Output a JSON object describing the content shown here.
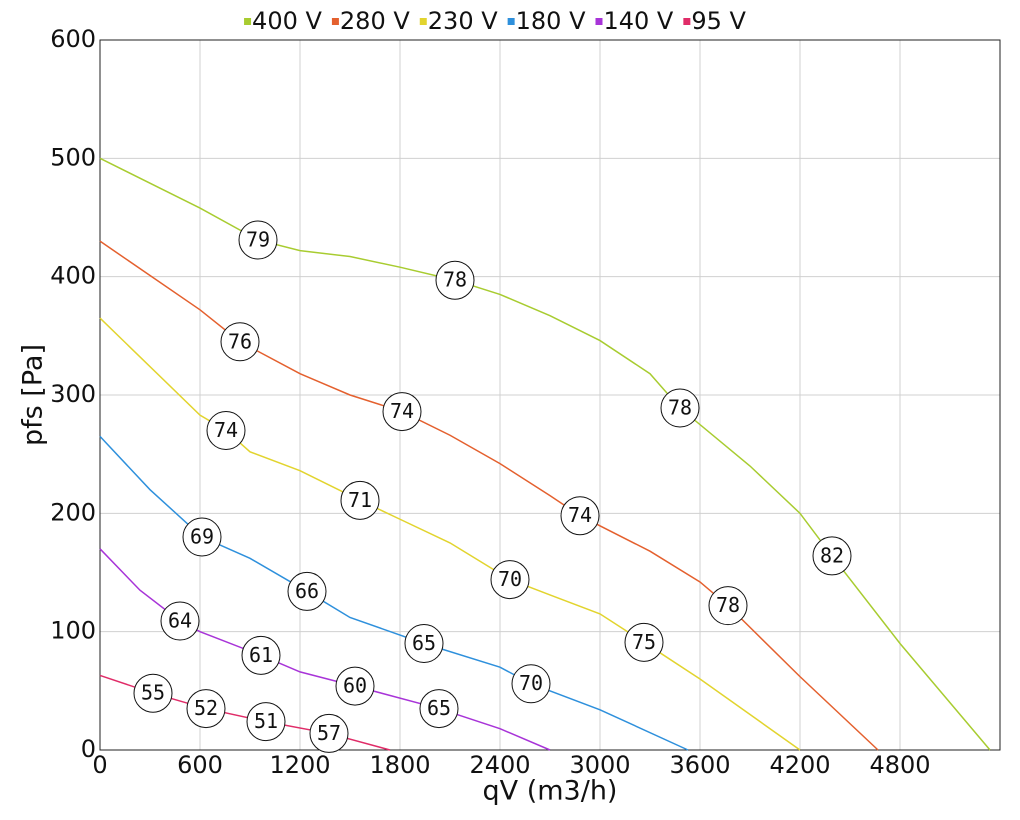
{
  "chart_data": {
    "type": "line",
    "x_label": "qV (m3/h)",
    "y_label": "pfs [Pa]",
    "xlim": [
      0,
      5400
    ],
    "ylim": [
      0,
      600
    ],
    "xticks": [
      0,
      600,
      1200,
      1800,
      2400,
      3000,
      3600,
      4200,
      4800
    ],
    "yticks": [
      0,
      100,
      200,
      300,
      400,
      500,
      600
    ],
    "grid": true,
    "legend": "top",
    "series": [
      {
        "name": "400 V",
        "color": "#a8cc30",
        "x": [
          0,
          600,
          948,
          1200,
          1500,
          1800,
          2130,
          2400,
          2700,
          3000,
          3300,
          3480,
          3900,
          4200,
          4392,
          4800,
          5340
        ],
        "values": [
          500,
          458,
          431,
          422,
          417,
          408,
          397,
          385,
          367,
          346,
          318,
          289,
          240,
          200,
          164,
          90,
          0
        ],
        "markers": {
          "x": [
            948,
            2130,
            3480,
            4392
          ],
          "y": [
            431,
            397,
            289,
            164
          ],
          "labels": [
            79,
            78,
            78,
            82
          ]
        }
      },
      {
        "name": "280 V",
        "color": "#e4602e",
        "x": [
          0,
          600,
          840,
          1200,
          1500,
          1812,
          2100,
          2400,
          2700,
          2880,
          3300,
          3600,
          3768,
          4200,
          4668
        ],
        "values": [
          430,
          372,
          345,
          318,
          300,
          286,
          266,
          242,
          215,
          198,
          168,
          142,
          122,
          62,
          0
        ],
        "markers": {
          "x": [
            840,
            1812,
            2880,
            3768
          ],
          "y": [
            345,
            286,
            198,
            122
          ],
          "labels": [
            76,
            74,
            74,
            78
          ]
        }
      },
      {
        "name": "230 V",
        "color": "#e2d42e",
        "x": [
          0,
          600,
          756,
          900,
          1200,
          1560,
          1800,
          2100,
          2460,
          2700,
          3000,
          3264,
          3600,
          4200
        ],
        "values": [
          365,
          283,
          270,
          252,
          236,
          211,
          195,
          175,
          144,
          131,
          115,
          91,
          60,
          0
        ],
        "markers": {
          "x": [
            756,
            1560,
            2460,
            3264
          ],
          "y": [
            270,
            211,
            144,
            91
          ],
          "labels": [
            74,
            71,
            70,
            75
          ]
        }
      },
      {
        "name": "180 V",
        "color": "#2e90dc",
        "x": [
          0,
          300,
          612,
          900,
          1242,
          1500,
          1944,
          2400,
          2586,
          3000,
          3528
        ],
        "values": [
          265,
          220,
          180,
          162,
          134,
          112,
          90,
          70,
          56,
          34,
          0
        ],
        "markers": {
          "x": [
            612,
            1242,
            1944,
            2586
          ],
          "y": [
            180,
            134,
            90,
            56
          ],
          "labels": [
            69,
            66,
            65,
            70
          ]
        }
      },
      {
        "name": "140 V",
        "color": "#a834d8",
        "x": [
          0,
          240,
          480,
          600,
          966,
          1200,
          1530,
          2034,
          2400,
          2700
        ],
        "values": [
          170,
          135,
          109,
          100,
          80,
          66,
          54,
          35,
          18,
          0
        ],
        "markers": {
          "x": [
            480,
            966,
            1530,
            2034
          ],
          "y": [
            109,
            80,
            54,
            35
          ],
          "labels": [
            64,
            61,
            60,
            65
          ]
        }
      },
      {
        "name": "95 V",
        "color": "#e02c68",
        "x": [
          0,
          318,
          636,
          996,
          1374,
          1740
        ],
        "values": [
          63,
          48,
          35,
          24,
          14,
          0
        ],
        "markers": {
          "x": [
            318,
            636,
            996,
            1374
          ],
          "y": [
            48,
            35,
            24,
            14
          ],
          "labels": [
            55,
            52,
            51,
            57
          ]
        }
      }
    ]
  }
}
